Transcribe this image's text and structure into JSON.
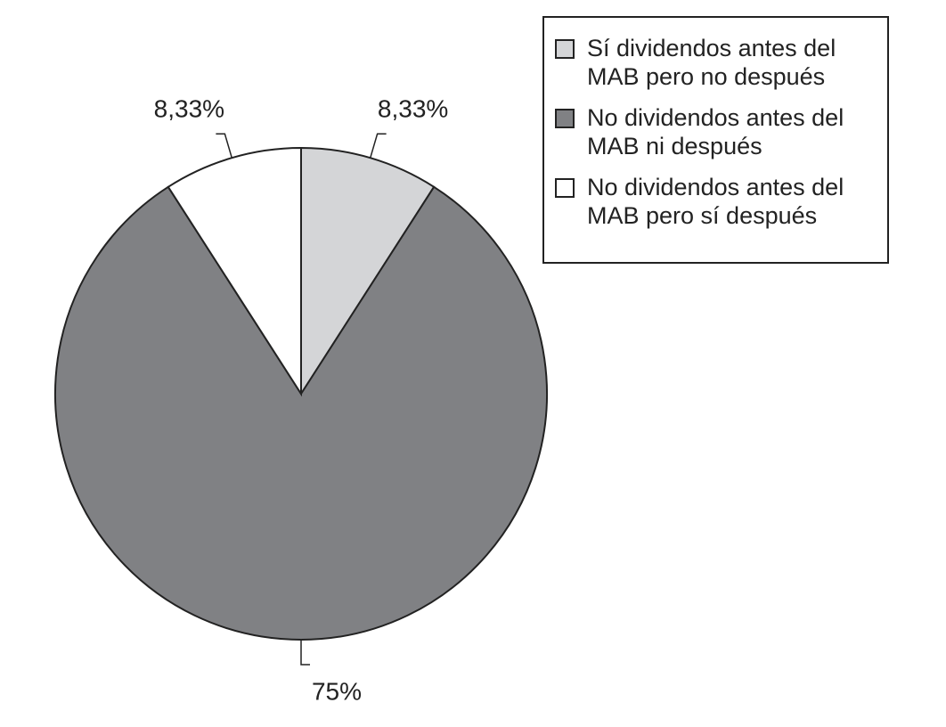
{
  "chart_data": {
    "type": "pie",
    "categories": [
      "Sí dividendos antes del MAB pero no después",
      "No dividendos antes del MAB ni después",
      "No dividendos antes del MAB pero sí después"
    ],
    "values": [
      8.33,
      75,
      8.33
    ],
    "value_labels": [
      "8,33%",
      "75%",
      "8,33%"
    ],
    "colors": [
      "#d4d5d7",
      "#808184",
      "#ffffff"
    ],
    "legend": "top-right"
  }
}
